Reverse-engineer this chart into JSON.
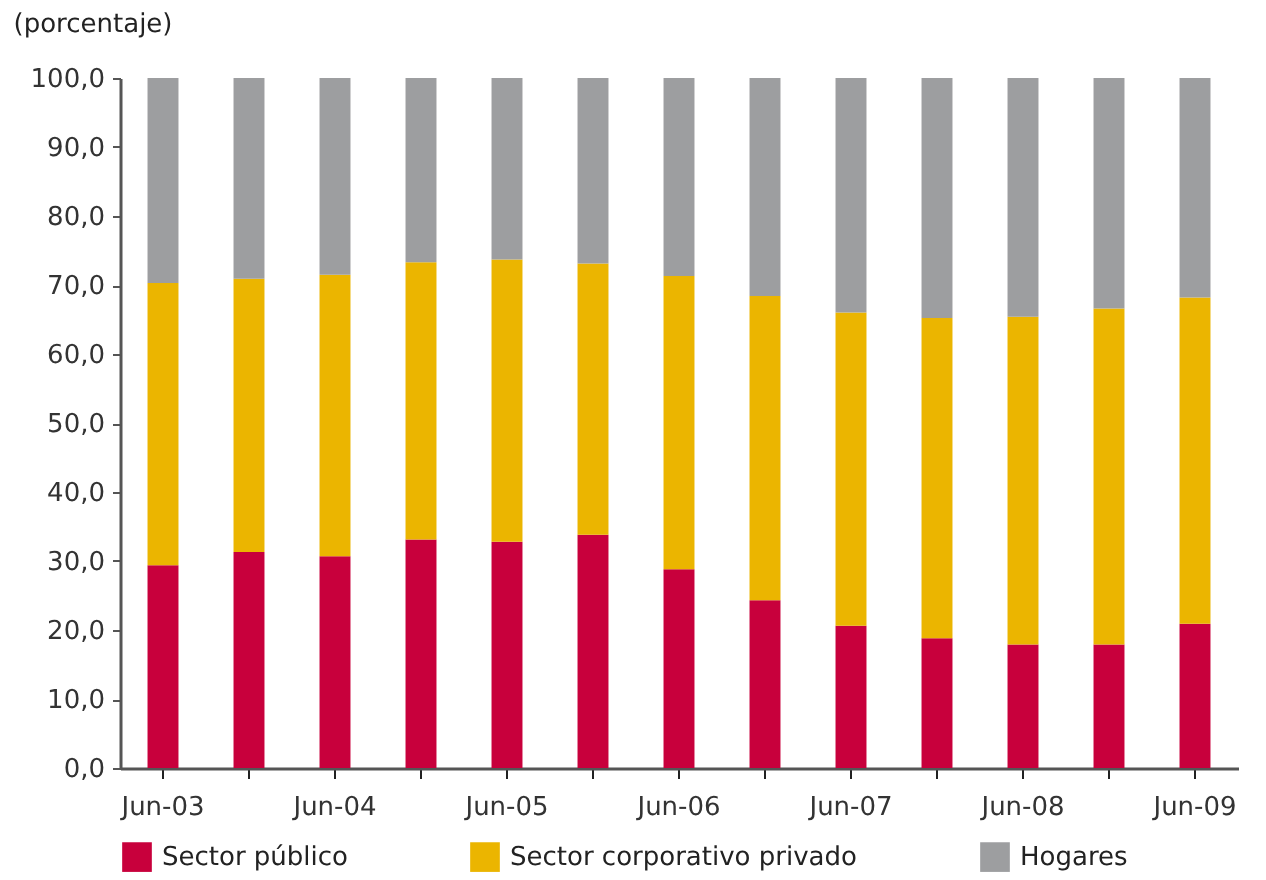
{
  "chart_data": {
    "type": "bar",
    "stacked": true,
    "ylabel": "(porcentaje)",
    "categories": [
      "Jun-03",
      null,
      "Jun-04",
      null,
      "Jun-05",
      null,
      "Jun-06",
      null,
      "Jun-07",
      null,
      "Jun-08",
      null,
      "Jun-09"
    ],
    "series": [
      {
        "name": "Sector público",
        "color": "#c8003c",
        "values": [
          29.4,
          31.3,
          30.7,
          33.1,
          32.8,
          33.8,
          28.8,
          24.3,
          20.6,
          18.8,
          17.9,
          17.9,
          20.9
        ]
      },
      {
        "name": "Sector corporativo privado",
        "color": "#ebb500",
        "values": [
          40.9,
          39.6,
          40.8,
          40.2,
          40.9,
          39.3,
          42.5,
          44.1,
          45.4,
          46.4,
          47.5,
          48.7,
          47.3
        ]
      },
      {
        "name": "Hogares",
        "color": "#9d9ea0",
        "values": [
          29.7,
          29.1,
          28.5,
          26.7,
          26.3,
          26.9,
          28.7,
          31.6,
          34.0,
          34.8,
          34.6,
          33.4,
          31.8
        ]
      }
    ],
    "ylim": [
      0,
      100
    ],
    "yticks": [
      {
        "value": 0,
        "label": "0,0"
      },
      {
        "value": 10,
        "label": "10,0"
      },
      {
        "value": 20,
        "label": "20,0"
      },
      {
        "value": 30,
        "label": "30,0"
      },
      {
        "value": 40,
        "label": "40,0"
      },
      {
        "value": 50,
        "label": "50,0"
      },
      {
        "value": 60,
        "label": "60,0"
      },
      {
        "value": 70,
        "label": "70,0"
      },
      {
        "value": 80,
        "label": "80,0"
      },
      {
        "value": 90,
        "label": "90,0"
      },
      {
        "value": 100,
        "label": "100,0"
      }
    ],
    "grid": false,
    "legend": "bottom"
  }
}
